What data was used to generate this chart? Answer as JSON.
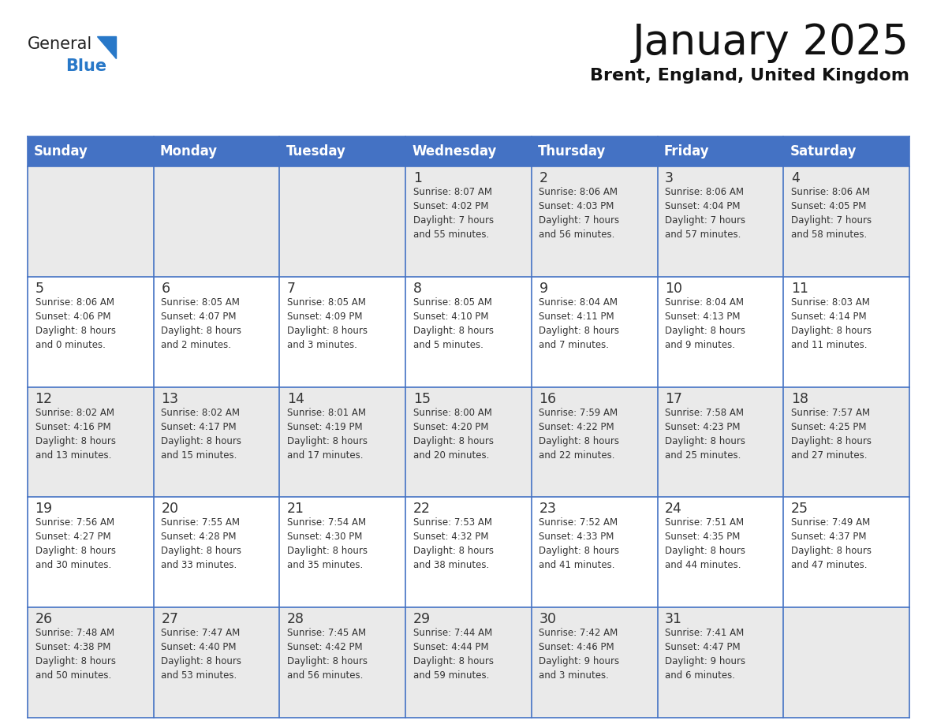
{
  "title": "January 2025",
  "subtitle": "Brent, England, United Kingdom",
  "days_of_week": [
    "Sunday",
    "Monday",
    "Tuesday",
    "Wednesday",
    "Thursday",
    "Friday",
    "Saturday"
  ],
  "header_bg": "#4472C4",
  "header_text_color": "#FFFFFF",
  "cell_bg_odd": "#EAEAEA",
  "cell_bg_even": "#FFFFFF",
  "border_color": "#4472C4",
  "day_number_color": "#333333",
  "cell_text_color": "#333333",
  "title_color": "#111111",
  "subtitle_color": "#111111",
  "generalblue_black": "#222222",
  "generalblue_blue": "#2878C8",
  "calendar": [
    [
      {
        "day": null,
        "info": ""
      },
      {
        "day": null,
        "info": ""
      },
      {
        "day": null,
        "info": ""
      },
      {
        "day": 1,
        "info": "Sunrise: 8:07 AM\nSunset: 4:02 PM\nDaylight: 7 hours\nand 55 minutes."
      },
      {
        "day": 2,
        "info": "Sunrise: 8:06 AM\nSunset: 4:03 PM\nDaylight: 7 hours\nand 56 minutes."
      },
      {
        "day": 3,
        "info": "Sunrise: 8:06 AM\nSunset: 4:04 PM\nDaylight: 7 hours\nand 57 minutes."
      },
      {
        "day": 4,
        "info": "Sunrise: 8:06 AM\nSunset: 4:05 PM\nDaylight: 7 hours\nand 58 minutes."
      }
    ],
    [
      {
        "day": 5,
        "info": "Sunrise: 8:06 AM\nSunset: 4:06 PM\nDaylight: 8 hours\nand 0 minutes."
      },
      {
        "day": 6,
        "info": "Sunrise: 8:05 AM\nSunset: 4:07 PM\nDaylight: 8 hours\nand 2 minutes."
      },
      {
        "day": 7,
        "info": "Sunrise: 8:05 AM\nSunset: 4:09 PM\nDaylight: 8 hours\nand 3 minutes."
      },
      {
        "day": 8,
        "info": "Sunrise: 8:05 AM\nSunset: 4:10 PM\nDaylight: 8 hours\nand 5 minutes."
      },
      {
        "day": 9,
        "info": "Sunrise: 8:04 AM\nSunset: 4:11 PM\nDaylight: 8 hours\nand 7 minutes."
      },
      {
        "day": 10,
        "info": "Sunrise: 8:04 AM\nSunset: 4:13 PM\nDaylight: 8 hours\nand 9 minutes."
      },
      {
        "day": 11,
        "info": "Sunrise: 8:03 AM\nSunset: 4:14 PM\nDaylight: 8 hours\nand 11 minutes."
      }
    ],
    [
      {
        "day": 12,
        "info": "Sunrise: 8:02 AM\nSunset: 4:16 PM\nDaylight: 8 hours\nand 13 minutes."
      },
      {
        "day": 13,
        "info": "Sunrise: 8:02 AM\nSunset: 4:17 PM\nDaylight: 8 hours\nand 15 minutes."
      },
      {
        "day": 14,
        "info": "Sunrise: 8:01 AM\nSunset: 4:19 PM\nDaylight: 8 hours\nand 17 minutes."
      },
      {
        "day": 15,
        "info": "Sunrise: 8:00 AM\nSunset: 4:20 PM\nDaylight: 8 hours\nand 20 minutes."
      },
      {
        "day": 16,
        "info": "Sunrise: 7:59 AM\nSunset: 4:22 PM\nDaylight: 8 hours\nand 22 minutes."
      },
      {
        "day": 17,
        "info": "Sunrise: 7:58 AM\nSunset: 4:23 PM\nDaylight: 8 hours\nand 25 minutes."
      },
      {
        "day": 18,
        "info": "Sunrise: 7:57 AM\nSunset: 4:25 PM\nDaylight: 8 hours\nand 27 minutes."
      }
    ],
    [
      {
        "day": 19,
        "info": "Sunrise: 7:56 AM\nSunset: 4:27 PM\nDaylight: 8 hours\nand 30 minutes."
      },
      {
        "day": 20,
        "info": "Sunrise: 7:55 AM\nSunset: 4:28 PM\nDaylight: 8 hours\nand 33 minutes."
      },
      {
        "day": 21,
        "info": "Sunrise: 7:54 AM\nSunset: 4:30 PM\nDaylight: 8 hours\nand 35 minutes."
      },
      {
        "day": 22,
        "info": "Sunrise: 7:53 AM\nSunset: 4:32 PM\nDaylight: 8 hours\nand 38 minutes."
      },
      {
        "day": 23,
        "info": "Sunrise: 7:52 AM\nSunset: 4:33 PM\nDaylight: 8 hours\nand 41 minutes."
      },
      {
        "day": 24,
        "info": "Sunrise: 7:51 AM\nSunset: 4:35 PM\nDaylight: 8 hours\nand 44 minutes."
      },
      {
        "day": 25,
        "info": "Sunrise: 7:49 AM\nSunset: 4:37 PM\nDaylight: 8 hours\nand 47 minutes."
      }
    ],
    [
      {
        "day": 26,
        "info": "Sunrise: 7:48 AM\nSunset: 4:38 PM\nDaylight: 8 hours\nand 50 minutes."
      },
      {
        "day": 27,
        "info": "Sunrise: 7:47 AM\nSunset: 4:40 PM\nDaylight: 8 hours\nand 53 minutes."
      },
      {
        "day": 28,
        "info": "Sunrise: 7:45 AM\nSunset: 4:42 PM\nDaylight: 8 hours\nand 56 minutes."
      },
      {
        "day": 29,
        "info": "Sunrise: 7:44 AM\nSunset: 4:44 PM\nDaylight: 8 hours\nand 59 minutes."
      },
      {
        "day": 30,
        "info": "Sunrise: 7:42 AM\nSunset: 4:46 PM\nDaylight: 9 hours\nand 3 minutes."
      },
      {
        "day": 31,
        "info": "Sunrise: 7:41 AM\nSunset: 4:47 PM\nDaylight: 9 hours\nand 6 minutes."
      },
      {
        "day": null,
        "info": ""
      }
    ]
  ]
}
